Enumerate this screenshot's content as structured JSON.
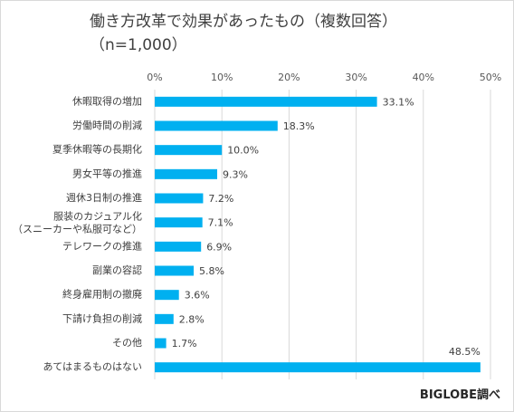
{
  "chart_data": {
    "type": "bar",
    "orientation": "horizontal",
    "title": "働き方改革で効果があったもの（複数回答）",
    "subtitle": "（n=1,000）",
    "categories": [
      "休暇取得の増加",
      "労働時間の削減",
      "夏季休暇等の長期化",
      "男女平等の推進",
      "週休3日制の推進",
      "服装のカジュアル化\n（スニーカーや私服可など）",
      "テレワークの推進",
      "副業の容認",
      "終身雇用制の撤廃",
      "下請け負担の削減",
      "その他",
      "あてはまるものはない"
    ],
    "values": [
      33.1,
      18.3,
      10.0,
      9.3,
      7.2,
      7.1,
      6.9,
      5.8,
      3.6,
      2.8,
      1.7,
      48.5
    ],
    "value_labels": [
      "33.1%",
      "18.3%",
      "10.0%",
      "9.3%",
      "7.2%",
      "7.1%",
      "6.9%",
      "5.8%",
      "3.6%",
      "2.8%",
      "1.7%",
      "48.5%"
    ],
    "xlim": [
      0,
      50
    ],
    "xticks": [
      "0%",
      "10%",
      "20%",
      "30%",
      "40%",
      "50%"
    ],
    "tick_values": [
      0,
      10,
      20,
      30,
      40,
      50
    ],
    "grid": true,
    "bar_color": "#00b0f0",
    "grid_color": "#d9d9d9"
  },
  "credit": "BIGLOBE調べ"
}
